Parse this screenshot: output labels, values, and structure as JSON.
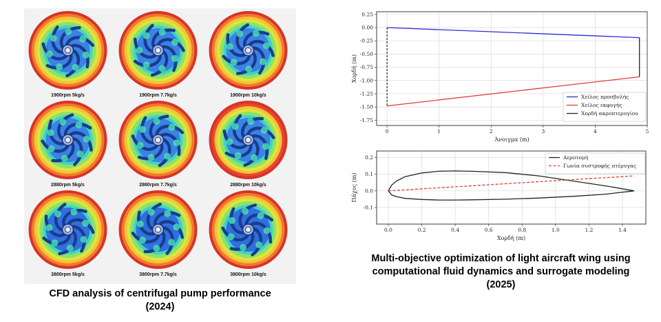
{
  "left_panel": {
    "labels": [
      "1900rpm 5kg/s",
      "1900rpm 7.7kg/s",
      "1900rpm 10kg/s",
      "2880rpm 5kg/s",
      "2880rpm 7.7kg/s",
      "2880rpm 10kg/s",
      "3800rpm 5kg/s",
      "3800rpm 7.7kg/s",
      "3800rpm 10kg/s"
    ],
    "caption_line1": "CFD analysis of centrifugal pump performance",
    "caption_line2": "(2024)"
  },
  "right_caption": {
    "line1": "Multi-objective optimization of light aircraft wing using",
    "line2": "computational fluid dynamics and surrogate modeling",
    "line3": "(2025)"
  },
  "chart_data": [
    {
      "type": "line",
      "xlabel": "Άνοιγμα (m)",
      "ylabel": "Χορδή (m)",
      "xlim": [
        -0.2,
        5.0
      ],
      "ylim": [
        -1.85,
        0.3
      ],
      "xticks": [
        "0",
        "1",
        "2",
        "3",
        "4",
        "5"
      ],
      "xtick_values": [
        0,
        1,
        2,
        3,
        4,
        5
      ],
      "yticks": [
        "0.25",
        "0.00",
        "-0.25",
        "-0.50",
        "-0.75",
        "-1.00",
        "-1.25",
        "-1.50",
        "-1.75"
      ],
      "ytick_values": [
        0.25,
        0.0,
        -0.25,
        -0.5,
        -0.75,
        -1.0,
        -1.25,
        -1.5,
        -1.75
      ],
      "grid": true,
      "legend_position": "lower-right",
      "series": [
        {
          "name": "Χείλος προσβολής",
          "color": "#2b2bd6",
          "style": "solid",
          "x": [
            0,
            4.85
          ],
          "y": [
            0.0,
            -0.19
          ]
        },
        {
          "name": "Χείλος εκφυγής",
          "color": "#e03a3a",
          "style": "solid",
          "x": [
            0,
            4.85
          ],
          "y": [
            -1.48,
            -0.93
          ]
        },
        {
          "name": "Χορδή ακροπτερυγίου",
          "color": "#222222",
          "style": "solid",
          "x": [
            4.85,
            4.85
          ],
          "y": [
            -0.19,
            -0.93
          ]
        }
      ],
      "extra_lines": [
        {
          "color": "#222222",
          "style": "dashed",
          "x": [
            0,
            0
          ],
          "y": [
            0.0,
            -1.48
          ]
        }
      ]
    },
    {
      "type": "line",
      "xlabel": "Χορδή (m)",
      "ylabel": "Πάχος (m)",
      "xlim": [
        -0.07,
        1.54
      ],
      "ylim": [
        -0.2,
        0.24
      ],
      "xticks": [
        "0.0",
        "0.2",
        "0.4",
        "0.6",
        "0.8",
        "1.0",
        "1.2",
        "1.4"
      ],
      "xtick_values": [
        0.0,
        0.2,
        0.4,
        0.6,
        0.8,
        1.0,
        1.2,
        1.4
      ],
      "yticks": [
        "0.2",
        "0.1",
        "0.0",
        "-0.1"
      ],
      "ytick_values": [
        0.2,
        0.1,
        0.0,
        -0.1
      ],
      "grid": true,
      "legend_position": "upper-right",
      "series": [
        {
          "name": "Αεροτομή",
          "color": "#222222",
          "style": "solid",
          "x": [
            1.47,
            1.3,
            1.1,
            0.9,
            0.7,
            0.5,
            0.4,
            0.3,
            0.2,
            0.1,
            0.05,
            0.02,
            0.0,
            0.02,
            0.05,
            0.1,
            0.2,
            0.3,
            0.4,
            0.5,
            0.7,
            0.9,
            1.1,
            1.3,
            1.47
          ],
          "y": [
            0.0,
            0.03,
            0.06,
            0.09,
            0.11,
            0.118,
            0.12,
            0.118,
            0.108,
            0.085,
            0.06,
            0.035,
            0.0,
            -0.025,
            -0.035,
            -0.045,
            -0.052,
            -0.055,
            -0.055,
            -0.054,
            -0.05,
            -0.043,
            -0.033,
            -0.02,
            0.0
          ]
        },
        {
          "name": "Γωνία συστροφής πτέρυγας",
          "color": "#e03a3a",
          "style": "dashed",
          "x": [
            0.0,
            1.47
          ],
          "y": [
            0.0,
            0.09
          ]
        }
      ]
    }
  ]
}
